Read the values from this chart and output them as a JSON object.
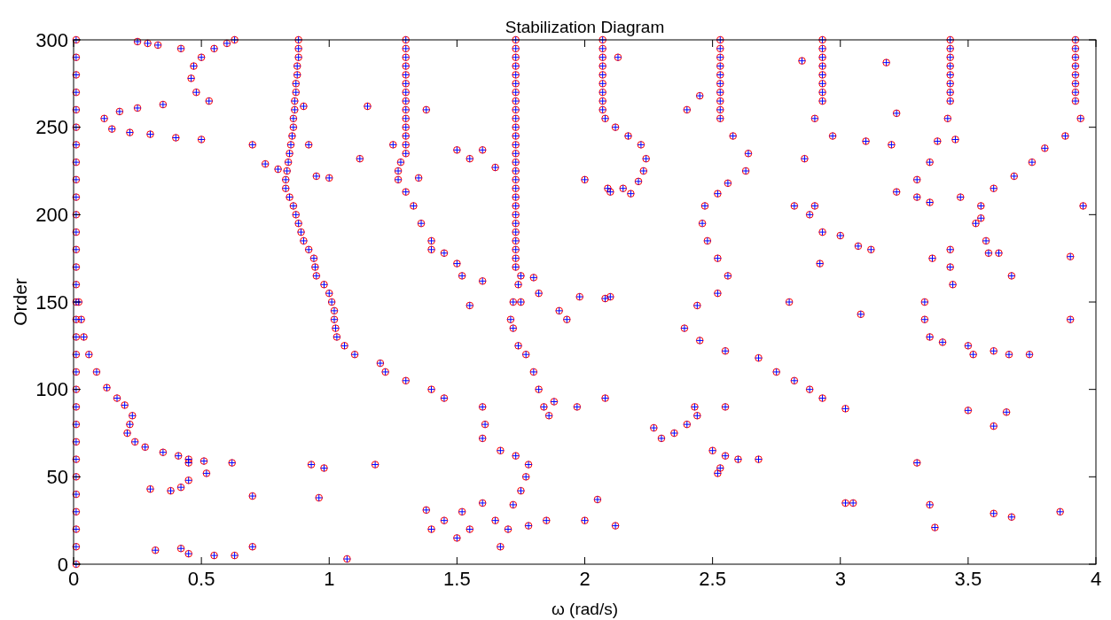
{
  "chart_data": {
    "type": "scatter",
    "title": "Stabilization Diagram",
    "xlabel": "ω (rad/s)",
    "ylabel": "Order",
    "xlim": [
      0,
      4
    ],
    "ylim": [
      0,
      300
    ],
    "xticks": [
      0,
      0.5,
      1,
      1.5,
      2,
      2.5,
      3,
      3.5,
      4
    ],
    "yticks": [
      0,
      50,
      100,
      150,
      200,
      250,
      300
    ],
    "grid": false,
    "series": [
      {
        "color": "#ff0000",
        "marker": "circle",
        "x": [
          0.01,
          0.01,
          0.01,
          0.01,
          0.01,
          0.01,
          0.01,
          0.01,
          0.01,
          0.01,
          0.01,
          0.01,
          0.01,
          0.01,
          0.01,
          0.01,
          0.01,
          0.01,
          0.01,
          0.01,
          0.01,
          0.01,
          0.01,
          0.01,
          0.01,
          0.01,
          0.01,
          0.01,
          0.01,
          0.01,
          0.01,
          0.02,
          0.03,
          0.04,
          0.06,
          0.09,
          0.13,
          0.17,
          0.2,
          0.23,
          0.22,
          0.21,
          0.24,
          0.28,
          0.35,
          0.41,
          0.45,
          0.51,
          0.45,
          0.42,
          0.38,
          0.3,
          0.52,
          0.62,
          0.45,
          0.32,
          0.42,
          0.45,
          0.55,
          0.63,
          0.7,
          0.7,
          0.93,
          0.98,
          0.96,
          1.07,
          1.18,
          0.12,
          0.18,
          0.25,
          0.35,
          0.15,
          0.22,
          0.3,
          0.4,
          0.5,
          0.25,
          0.29,
          0.33,
          0.42,
          0.53,
          0.48,
          0.46,
          0.47,
          0.5,
          0.55,
          0.6,
          0.63,
          0.88,
          0.88,
          0.88,
          0.875,
          0.875,
          0.87,
          0.87,
          0.865,
          0.865,
          0.86,
          0.86,
          0.855,
          0.85,
          0.845,
          0.84,
          0.835,
          0.83,
          0.83,
          0.845,
          0.86,
          0.87,
          0.88,
          0.89,
          0.9,
          0.92,
          0.94,
          0.945,
          0.95,
          0.98,
          1.0,
          1.01,
          1.02,
          1.02,
          1.025,
          1.03,
          1.06,
          1.1,
          1.2,
          1.22,
          1.3,
          1.4,
          1.45,
          0.7,
          0.75,
          0.8,
          0.9,
          0.92,
          0.95,
          1.0,
          1.12,
          1.15,
          1.3,
          1.3,
          1.3,
          1.3,
          1.3,
          1.3,
          1.3,
          1.3,
          1.3,
          1.3,
          1.3,
          1.3,
          1.3,
          1.3,
          1.28,
          1.27,
          1.27,
          1.3,
          1.33,
          1.36,
          1.4,
          1.45,
          1.5,
          1.52,
          1.25,
          1.35,
          1.38,
          1.4,
          1.73,
          1.73,
          1.73,
          1.73,
          1.73,
          1.73,
          1.73,
          1.73,
          1.73,
          1.73,
          1.73,
          1.73,
          1.73,
          1.73,
          1.73,
          1.73,
          1.73,
          1.73,
          1.73,
          1.73,
          1.73,
          1.73,
          1.73,
          1.73,
          1.73,
          1.73,
          1.73,
          1.75,
          1.74,
          1.72,
          1.71,
          1.72,
          1.74,
          1.77,
          1.8,
          1.82,
          1.84,
          1.6,
          1.61,
          1.6,
          1.67,
          1.73,
          1.78,
          1.77,
          1.75,
          1.72,
          1.5,
          1.55,
          1.6,
          1.65,
          1.8,
          1.82,
          1.75,
          1.55,
          1.6,
          1.52,
          1.55,
          1.5,
          1.45,
          1.6,
          1.65,
          1.7,
          1.78,
          1.85,
          1.38,
          1.4,
          1.67,
          1.86,
          1.88,
          1.97,
          1.9,
          1.93,
          2.08,
          1.98,
          2.07,
          2.07,
          2.07,
          2.07,
          2.07,
          2.07,
          2.07,
          2.07,
          2.07,
          2.08,
          2.12,
          2.17,
          2.22,
          2.24,
          2.23,
          2.21,
          2.09,
          2.1,
          2.15,
          2.18,
          2.0,
          2.13,
          2.1,
          2.08,
          2.05,
          2.12,
          2.0,
          2.53,
          2.53,
          2.53,
          2.53,
          2.53,
          2.53,
          2.53,
          2.53,
          2.53,
          2.53,
          2.58,
          2.64,
          2.63,
          2.56,
          2.52,
          2.47,
          2.46,
          2.48,
          2.52,
          2.56,
          2.52,
          2.44,
          2.39,
          2.45,
          2.55,
          2.68,
          2.75,
          2.82,
          2.88,
          2.93,
          2.43,
          2.44,
          2.4,
          2.35,
          2.3,
          2.27,
          2.5,
          2.55,
          2.6,
          2.68,
          2.53,
          2.52,
          2.55,
          2.4,
          2.45,
          3.02,
          2.93,
          2.93,
          2.93,
          2.93,
          2.93,
          2.93,
          2.93,
          2.93,
          2.9,
          2.97,
          3.1,
          3.2,
          2.85,
          2.86,
          2.9,
          2.88,
          2.93,
          3.0,
          3.07,
          3.12,
          2.82,
          2.8,
          2.92,
          3.08,
          3.02,
          3.05,
          3.18,
          3.22,
          3.43,
          3.43,
          3.43,
          3.43,
          3.43,
          3.43,
          3.43,
          3.43,
          3.42,
          3.38,
          3.35,
          3.3,
          3.22,
          3.43,
          3.43,
          3.44,
          3.33,
          3.33,
          3.35,
          3.4,
          3.5,
          3.3,
          3.35,
          3.47,
          3.36,
          3.52,
          3.6,
          3.66,
          3.74,
          3.3,
          3.35,
          3.37,
          3.5,
          3.45,
          3.92,
          3.92,
          3.92,
          3.92,
          3.92,
          3.92,
          3.92,
          3.92,
          3.94,
          3.88,
          3.8,
          3.75,
          3.68,
          3.6,
          3.55,
          3.53,
          3.57,
          3.55,
          3.58,
          3.62,
          3.67,
          3.65,
          3.6,
          3.6,
          3.67,
          3.86,
          3.9,
          3.9,
          3.95
        ],
        "values": [
          0,
          10,
          20,
          30,
          40,
          50,
          60,
          70,
          80,
          90,
          100,
          110,
          120,
          130,
          140,
          150,
          160,
          170,
          180,
          190,
          200,
          210,
          220,
          230,
          240,
          250,
          260,
          270,
          280,
          290,
          300,
          150,
          140,
          130,
          120,
          110,
          101,
          95,
          91,
          85,
          80,
          75,
          70,
          67,
          64,
          62,
          60,
          59,
          48,
          44,
          42,
          43,
          52,
          58,
          58,
          8,
          9,
          6,
          5,
          5,
          10,
          39,
          57,
          55,
          38,
          3,
          57,
          255,
          259,
          261,
          263,
          249,
          247,
          246,
          244,
          243,
          299,
          298,
          297,
          295,
          265,
          270,
          278,
          285,
          290,
          295,
          298,
          300,
          300,
          295,
          290,
          285,
          280,
          275,
          270,
          265,
          260,
          255,
          250,
          245,
          240,
          235,
          230,
          225,
          220,
          215,
          210,
          205,
          200,
          195,
          190,
          185,
          180,
          175,
          170,
          165,
          160,
          155,
          150,
          145,
          140,
          135,
          130,
          125,
          120,
          115,
          110,
          105,
          100,
          95,
          240,
          229,
          226,
          262,
          240,
          222,
          221,
          232,
          262,
          300,
          295,
          290,
          285,
          280,
          275,
          270,
          265,
          260,
          255,
          250,
          245,
          240,
          235,
          230,
          225,
          220,
          213,
          205,
          195,
          185,
          178,
          172,
          165,
          240,
          221,
          260,
          180,
          300,
          295,
          290,
          285,
          280,
          275,
          270,
          265,
          260,
          255,
          250,
          245,
          240,
          235,
          230,
          225,
          220,
          215,
          210,
          205,
          200,
          195,
          190,
          185,
          180,
          175,
          170,
          165,
          160,
          150,
          140,
          135,
          125,
          120,
          110,
          100,
          90,
          90,
          80,
          72,
          65,
          62,
          57,
          50,
          42,
          34,
          237,
          232,
          237,
          227,
          164,
          155,
          150,
          148,
          162,
          30,
          20,
          15,
          25,
          35,
          25,
          20,
          22,
          25,
          31,
          20,
          10,
          85,
          93,
          90,
          145,
          140,
          95,
          153,
          300,
          295,
          290,
          285,
          280,
          275,
          270,
          265,
          260,
          255,
          250,
          245,
          240,
          232,
          225,
          219,
          215,
          213,
          215,
          212,
          220,
          290,
          153,
          152,
          37,
          22,
          25,
          300,
          295,
          290,
          285,
          280,
          275,
          270,
          265,
          260,
          255,
          245,
          235,
          225,
          218,
          212,
          205,
          195,
          185,
          175,
          165,
          155,
          148,
          135,
          128,
          122,
          118,
          110,
          105,
          100,
          95,
          90,
          85,
          80,
          75,
          72,
          78,
          65,
          62,
          60,
          60,
          55,
          52,
          90,
          260,
          268,
          89,
          300,
          295,
          290,
          285,
          280,
          275,
          270,
          265,
          255,
          245,
          242,
          240,
          288,
          232,
          205,
          200,
          190,
          188,
          182,
          180,
          205,
          150,
          172,
          143,
          35,
          35,
          287,
          258,
          300,
          295,
          290,
          285,
          280,
          275,
          270,
          265,
          255,
          242,
          230,
          220,
          213,
          180,
          170,
          160,
          150,
          140,
          130,
          127,
          125,
          210,
          207,
          210,
          175,
          120,
          122,
          120,
          120,
          58,
          34,
          21,
          88,
          243,
          300,
          295,
          290,
          285,
          280,
          275,
          270,
          265,
          255,
          245,
          238,
          230,
          222,
          215,
          205,
          195,
          185,
          198,
          178,
          178,
          165,
          87,
          79,
          29,
          27,
          30,
          176,
          140,
          205
        ]
      },
      {
        "color": "#0000ff",
        "marker": "cross",
        "x": [
          0.01,
          0.01,
          0.01,
          0.01,
          0.01,
          0.01,
          0.01,
          0.01,
          0.01,
          0.01,
          0.01,
          0.01,
          0.01,
          0.01,
          0.01,
          0.01,
          0.01,
          0.01,
          0.01,
          0.01,
          0.01,
          0.01,
          0.01,
          0.01,
          0.01,
          0.01,
          0.01,
          0.01,
          0.01,
          0.01,
          0.01,
          0.02,
          0.03,
          0.04,
          0.06,
          0.09,
          0.13,
          0.17,
          0.2,
          0.23,
          0.22,
          0.21,
          0.24,
          0.28,
          0.35,
          0.41,
          0.45,
          0.51,
          0.45,
          0.42,
          0.38,
          0.3,
          0.52,
          0.62,
          0.45,
          0.32,
          0.42,
          0.45,
          0.55,
          0.63,
          0.7,
          0.7,
          0.93,
          0.98,
          0.96,
          1.07,
          1.18,
          0.12,
          0.18,
          0.25,
          0.35,
          0.15,
          0.22,
          0.3,
          0.4,
          0.5,
          0.25,
          0.29,
          0.33,
          0.42,
          0.53,
          0.48,
          0.46,
          0.47,
          0.5,
          0.55,
          0.6,
          0.63,
          0.88,
          0.88,
          0.88,
          0.875,
          0.875,
          0.87,
          0.87,
          0.865,
          0.865,
          0.86,
          0.86,
          0.855,
          0.85,
          0.845,
          0.84,
          0.835,
          0.83,
          0.83,
          0.845,
          0.86,
          0.87,
          0.88,
          0.89,
          0.9,
          0.92,
          0.94,
          0.945,
          0.95,
          0.98,
          1.0,
          1.01,
          1.02,
          1.02,
          1.025,
          1.03,
          1.06,
          1.1,
          1.2,
          1.22,
          1.3,
          1.4,
          1.45,
          0.7,
          0.75,
          0.8,
          0.9,
          0.92,
          0.95,
          1.0,
          1.12,
          1.15,
          1.3,
          1.3,
          1.3,
          1.3,
          1.3,
          1.3,
          1.3,
          1.3,
          1.3,
          1.3,
          1.3,
          1.3,
          1.3,
          1.3,
          1.28,
          1.27,
          1.27,
          1.3,
          1.33,
          1.36,
          1.4,
          1.45,
          1.5,
          1.52,
          1.25,
          1.35,
          1.38,
          1.4,
          1.73,
          1.73,
          1.73,
          1.73,
          1.73,
          1.73,
          1.73,
          1.73,
          1.73,
          1.73,
          1.73,
          1.73,
          1.73,
          1.73,
          1.73,
          1.73,
          1.73,
          1.73,
          1.73,
          1.73,
          1.73,
          1.73,
          1.73,
          1.73,
          1.73,
          1.73,
          1.73,
          1.75,
          1.74,
          1.72,
          1.71,
          1.72,
          1.74,
          1.77,
          1.8,
          1.82,
          1.84,
          1.6,
          1.61,
          1.6,
          1.67,
          1.73,
          1.78,
          1.77,
          1.75,
          1.72,
          1.5,
          1.55,
          1.6,
          1.65,
          1.8,
          1.82,
          1.75,
          1.55,
          1.6,
          1.52,
          1.55,
          1.5,
          1.45,
          1.6,
          1.65,
          1.7,
          1.78,
          1.85,
          1.38,
          1.4,
          1.67,
          1.86,
          1.88,
          1.97,
          1.9,
          1.93,
          2.08,
          1.98,
          2.07,
          2.07,
          2.07,
          2.07,
          2.07,
          2.07,
          2.07,
          2.07,
          2.07,
          2.08,
          2.12,
          2.17,
          2.22,
          2.24,
          2.23,
          2.21,
          2.09,
          2.1,
          2.15,
          2.18,
          2.0,
          2.13,
          2.1,
          2.08,
          2.05,
          2.12,
          2.0,
          2.53,
          2.53,
          2.53,
          2.53,
          2.53,
          2.53,
          2.53,
          2.53,
          2.53,
          2.53,
          2.58,
          2.64,
          2.63,
          2.56,
          2.52,
          2.47,
          2.46,
          2.48,
          2.52,
          2.56,
          2.52,
          2.44,
          2.39,
          2.45,
          2.55,
          2.68,
          2.75,
          2.82,
          2.88,
          2.93,
          2.43,
          2.44,
          2.4,
          2.35,
          2.3,
          2.27,
          2.5,
          2.55,
          2.6,
          2.68,
          2.53,
          2.52,
          2.55,
          2.4,
          2.45,
          3.02,
          2.93,
          2.93,
          2.93,
          2.93,
          2.93,
          2.93,
          2.93,
          2.93,
          2.9,
          2.97,
          3.1,
          3.2,
          2.85,
          2.86,
          2.9,
          2.88,
          2.93,
          3.0,
          3.07,
          3.12,
          2.82,
          2.8,
          2.92,
          3.08,
          3.02,
          3.05,
          3.18,
          3.22,
          3.43,
          3.43,
          3.43,
          3.43,
          3.43,
          3.43,
          3.43,
          3.43,
          3.42,
          3.38,
          3.35,
          3.3,
          3.22,
          3.43,
          3.43,
          3.44,
          3.33,
          3.33,
          3.35,
          3.4,
          3.5,
          3.3,
          3.35,
          3.47,
          3.36,
          3.52,
          3.6,
          3.66,
          3.74,
          3.3,
          3.35,
          3.37,
          3.5,
          3.45,
          3.92,
          3.92,
          3.92,
          3.92,
          3.92,
          3.92,
          3.92,
          3.92,
          3.94,
          3.88,
          3.8,
          3.75,
          3.68,
          3.6,
          3.55,
          3.53,
          3.57,
          3.55,
          3.58,
          3.62,
          3.67,
          3.65,
          3.6,
          3.6,
          3.67,
          3.86,
          3.9,
          3.9,
          3.95
        ],
        "values": [
          0,
          10,
          20,
          30,
          40,
          50,
          60,
          70,
          80,
          90,
          100,
          110,
          120,
          130,
          140,
          150,
          160,
          170,
          180,
          190,
          200,
          210,
          220,
          230,
          240,
          250,
          260,
          270,
          280,
          290,
          300,
          150,
          140,
          130,
          120,
          110,
          101,
          95,
          91,
          85,
          80,
          75,
          70,
          67,
          64,
          62,
          60,
          59,
          48,
          44,
          42,
          43,
          52,
          58,
          58,
          8,
          9,
          6,
          5,
          5,
          10,
          39,
          57,
          55,
          38,
          3,
          57,
          255,
          259,
          261,
          263,
          249,
          247,
          246,
          244,
          243,
          299,
          298,
          297,
          295,
          265,
          270,
          278,
          285,
          290,
          295,
          298,
          300,
          300,
          295,
          290,
          285,
          280,
          275,
          270,
          265,
          260,
          255,
          250,
          245,
          240,
          235,
          230,
          225,
          220,
          215,
          210,
          205,
          200,
          195,
          190,
          185,
          180,
          175,
          170,
          165,
          160,
          155,
          150,
          145,
          140,
          135,
          130,
          125,
          120,
          115,
          110,
          105,
          100,
          95,
          240,
          229,
          226,
          262,
          240,
          222,
          221,
          232,
          262,
          300,
          295,
          290,
          285,
          280,
          275,
          270,
          265,
          260,
          255,
          250,
          245,
          240,
          235,
          230,
          225,
          220,
          213,
          205,
          195,
          185,
          178,
          172,
          165,
          240,
          221,
          260,
          180,
          300,
          295,
          290,
          285,
          280,
          275,
          270,
          265,
          260,
          255,
          250,
          245,
          240,
          235,
          230,
          225,
          220,
          215,
          210,
          205,
          200,
          195,
          190,
          185,
          180,
          175,
          170,
          165,
          160,
          150,
          140,
          135,
          125,
          120,
          110,
          100,
          90,
          90,
          80,
          72,
          65,
          62,
          57,
          50,
          42,
          34,
          237,
          232,
          237,
          227,
          164,
          155,
          150,
          148,
          162,
          30,
          20,
          15,
          25,
          35,
          25,
          20,
          22,
          25,
          31,
          20,
          10,
          85,
          93,
          90,
          145,
          140,
          95,
          153,
          300,
          295,
          290,
          285,
          280,
          275,
          270,
          265,
          260,
          255,
          250,
          245,
          240,
          232,
          225,
          219,
          215,
          213,
          215,
          212,
          220,
          290,
          153,
          152,
          37,
          22,
          25,
          300,
          295,
          290,
          285,
          280,
          275,
          270,
          265,
          260,
          255,
          245,
          235,
          225,
          218,
          212,
          205,
          195,
          185,
          175,
          165,
          155,
          148,
          135,
          128,
          122,
          118,
          110,
          105,
          100,
          95,
          90,
          85,
          80,
          75,
          72,
          78,
          65,
          62,
          60,
          60,
          55,
          52,
          90,
          260,
          268,
          89,
          300,
          295,
          290,
          285,
          280,
          275,
          270,
          265,
          255,
          245,
          242,
          240,
          288,
          232,
          205,
          200,
          190,
          188,
          182,
          180,
          205,
          150,
          172,
          143,
          35,
          35,
          287,
          258,
          300,
          295,
          290,
          285,
          280,
          275,
          270,
          265,
          255,
          242,
          230,
          220,
          213,
          180,
          170,
          160,
          150,
          140,
          130,
          127,
          125,
          210,
          207,
          210,
          175,
          120,
          122,
          120,
          120,
          58,
          34,
          21,
          88,
          243,
          300,
          295,
          290,
          285,
          280,
          275,
          270,
          265,
          255,
          245,
          238,
          230,
          222,
          215,
          205,
          195,
          185,
          198,
          178,
          178,
          165,
          87,
          79,
          29,
          27,
          30,
          176,
          140,
          205
        ]
      }
    ]
  }
}
